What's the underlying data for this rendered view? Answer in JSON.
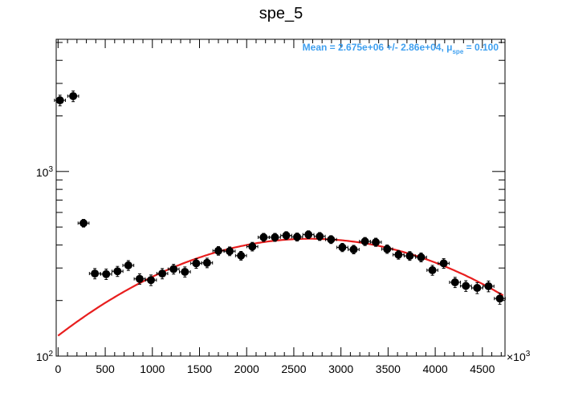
{
  "chart_data": {
    "type": "scatter",
    "title": "spe_5",
    "xlabel": "",
    "ylabel": "",
    "x_scale_label": {
      "base": "×10",
      "exp": "3"
    },
    "xlim": [
      -20,
      4740
    ],
    "ylim": [
      100,
      5200
    ],
    "y_scale": "log",
    "x_ticks": [
      0,
      500,
      1000,
      1500,
      2000,
      2500,
      3000,
      3500,
      4000,
      4500
    ],
    "x_tick_labels": [
      "0",
      "500",
      "1000",
      "1500",
      "2000",
      "2500",
      "3000",
      "3500",
      "4000",
      "4500"
    ],
    "y_major_ticks": [
      {
        "value": 100,
        "base": "10",
        "exp": "2"
      },
      {
        "value": 1000,
        "base": "10",
        "exp": "3"
      }
    ],
    "y_minor_ticks": [
      200,
      300,
      400,
      500,
      600,
      700,
      800,
      900,
      2000,
      3000,
      4000,
      5000
    ],
    "grid": false,
    "legend": "none",
    "stats_box": {
      "text_main": "Mean = 2.675e+06 +/- 2.86e+04, μ",
      "text_sub": "spe",
      "text_tail": " = 0.100",
      "color": "#3fa0f0"
    },
    "x_error_half_width": 58,
    "series": [
      {
        "kind": "data",
        "color": "#000000",
        "points": [
          {
            "x": 20,
            "y": 2430,
            "err": 160
          },
          {
            "x": 160,
            "y": 2560,
            "err": 170
          },
          {
            "x": 270,
            "y": 525,
            "err": 25
          },
          {
            "x": 390,
            "y": 280,
            "err": 18
          },
          {
            "x": 510,
            "y": 278,
            "err": 18
          },
          {
            "x": 630,
            "y": 288,
            "err": 18
          },
          {
            "x": 745,
            "y": 310,
            "err": 19
          },
          {
            "x": 865,
            "y": 262,
            "err": 17
          },
          {
            "x": 985,
            "y": 258,
            "err": 17
          },
          {
            "x": 1105,
            "y": 280,
            "err": 18
          },
          {
            "x": 1225,
            "y": 296,
            "err": 18
          },
          {
            "x": 1345,
            "y": 286,
            "err": 18
          },
          {
            "x": 1465,
            "y": 318,
            "err": 19
          },
          {
            "x": 1580,
            "y": 320,
            "err": 19
          },
          {
            "x": 1700,
            "y": 372,
            "err": 20
          },
          {
            "x": 1820,
            "y": 370,
            "err": 20
          },
          {
            "x": 1940,
            "y": 350,
            "err": 19
          },
          {
            "x": 2060,
            "y": 392,
            "err": 21
          },
          {
            "x": 2180,
            "y": 440,
            "err": 22
          },
          {
            "x": 2300,
            "y": 440,
            "err": 22
          },
          {
            "x": 2420,
            "y": 450,
            "err": 22
          },
          {
            "x": 2535,
            "y": 442,
            "err": 22
          },
          {
            "x": 2655,
            "y": 455,
            "err": 22
          },
          {
            "x": 2775,
            "y": 445,
            "err": 22
          },
          {
            "x": 2895,
            "y": 428,
            "err": 21
          },
          {
            "x": 3015,
            "y": 388,
            "err": 20
          },
          {
            "x": 3135,
            "y": 378,
            "err": 20
          },
          {
            "x": 3255,
            "y": 418,
            "err": 21
          },
          {
            "x": 3370,
            "y": 414,
            "err": 21
          },
          {
            "x": 3490,
            "y": 380,
            "err": 20
          },
          {
            "x": 3610,
            "y": 354,
            "err": 19
          },
          {
            "x": 3730,
            "y": 349,
            "err": 19
          },
          {
            "x": 3850,
            "y": 343,
            "err": 19
          },
          {
            "x": 3970,
            "y": 292,
            "err": 18
          },
          {
            "x": 4090,
            "y": 318,
            "err": 19
          },
          {
            "x": 4210,
            "y": 251,
            "err": 16
          },
          {
            "x": 4325,
            "y": 240,
            "err": 16
          },
          {
            "x": 4445,
            "y": 234,
            "err": 16
          },
          {
            "x": 4565,
            "y": 239,
            "err": 16
          },
          {
            "x": 4685,
            "y": 205,
            "err": 14
          }
        ]
      },
      {
        "kind": "fit",
        "color": "#e81e1e",
        "curve": {
          "type": "gaussian",
          "amplitude": 432,
          "mean": 2675,
          "sigma": 1720,
          "x_start": 0,
          "x_end": 4720
        }
      }
    ]
  }
}
